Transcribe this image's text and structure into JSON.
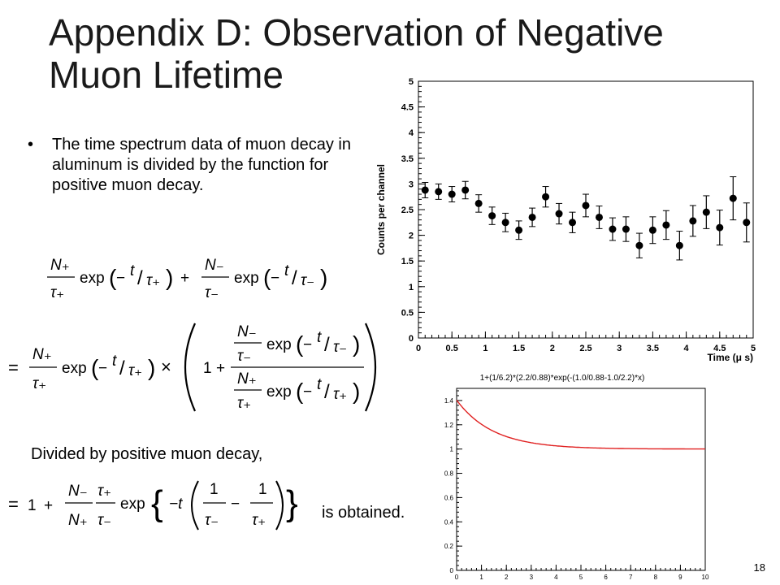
{
  "slide": {
    "title_line1": "Appendix D: Observation of Negative",
    "title_line2": "Muon Lifetime",
    "bullet_text": "The time spectrum data of muon decay in aluminum is divided by the function for positive muon decay.",
    "divided_text": "Divided by positive muon decay,",
    "obtained_text": "is obtained.",
    "page_number": "18"
  },
  "equations": {
    "N_plus": "N₊",
    "N_minus": "N₋",
    "tau_plus": "τ₊",
    "tau_minus": "τ₋",
    "exp": "exp",
    "times": "×",
    "eq": "=",
    "one": "1",
    "plus": "+",
    "minus": "−",
    "t": "t",
    "neg_t": "−t"
  },
  "chart_data": [
    {
      "type": "scatter",
      "title": "",
      "xlabel": "Time (μ s)",
      "ylabel": "Counts per channel",
      "xlim": [
        0,
        5
      ],
      "ylim": [
        0,
        5
      ],
      "xticks": [
        "0",
        "0.5",
        "1",
        "1.5",
        "2",
        "2.5",
        "3",
        "3.5",
        "4",
        "4.5",
        "5"
      ],
      "yticks": [
        "0",
        "0.5",
        "1",
        "1.5",
        "2",
        "2.5",
        "3",
        "3.5",
        "4",
        "4.5",
        "5"
      ],
      "grid": false,
      "points": [
        {
          "x": 0.1,
          "y": 2.88,
          "err": 0.15
        },
        {
          "x": 0.3,
          "y": 2.85,
          "err": 0.15
        },
        {
          "x": 0.5,
          "y": 2.8,
          "err": 0.15
        },
        {
          "x": 0.7,
          "y": 2.88,
          "err": 0.17
        },
        {
          "x": 0.9,
          "y": 2.62,
          "err": 0.17
        },
        {
          "x": 1.1,
          "y": 2.38,
          "err": 0.17
        },
        {
          "x": 1.3,
          "y": 2.25,
          "err": 0.18
        },
        {
          "x": 1.5,
          "y": 2.1,
          "err": 0.18
        },
        {
          "x": 1.7,
          "y": 2.35,
          "err": 0.18
        },
        {
          "x": 1.9,
          "y": 2.75,
          "err": 0.2
        },
        {
          "x": 2.1,
          "y": 2.42,
          "err": 0.2
        },
        {
          "x": 2.3,
          "y": 2.25,
          "err": 0.2
        },
        {
          "x": 2.5,
          "y": 2.58,
          "err": 0.22
        },
        {
          "x": 2.7,
          "y": 2.35,
          "err": 0.22
        },
        {
          "x": 2.9,
          "y": 2.12,
          "err": 0.22
        },
        {
          "x": 3.1,
          "y": 2.12,
          "err": 0.24
        },
        {
          "x": 3.3,
          "y": 1.8,
          "err": 0.24
        },
        {
          "x": 3.5,
          "y": 2.1,
          "err": 0.26
        },
        {
          "x": 3.7,
          "y": 2.2,
          "err": 0.28
        },
        {
          "x": 3.9,
          "y": 1.8,
          "err": 0.28
        },
        {
          "x": 4.1,
          "y": 2.28,
          "err": 0.3
        },
        {
          "x": 4.3,
          "y": 2.45,
          "err": 0.32
        },
        {
          "x": 4.5,
          "y": 2.15,
          "err": 0.34
        },
        {
          "x": 4.7,
          "y": 2.72,
          "err": 0.42
        },
        {
          "x": 4.9,
          "y": 2.25,
          "err": 0.38
        }
      ]
    },
    {
      "type": "line",
      "title": "1+(1/6.2)*(2.2/0.88)*exp(-(1.0/0.88-1.0/2.2)*x)",
      "xlabel": "",
      "ylabel": "",
      "xlim": [
        0,
        10
      ],
      "ylim": [
        0,
        1.5
      ],
      "xticks": [
        "0",
        "1",
        "2",
        "3",
        "4",
        "5",
        "6",
        "7",
        "8",
        "9",
        "10"
      ],
      "yticks": [
        "0",
        "0.2",
        "0.4",
        "0.6",
        "0.8",
        "1",
        "1.2",
        "1.4"
      ],
      "grid": false,
      "function": {
        "a": 0.4032,
        "k": 0.6818,
        "offset": 1
      },
      "color": "#e02020"
    }
  ]
}
